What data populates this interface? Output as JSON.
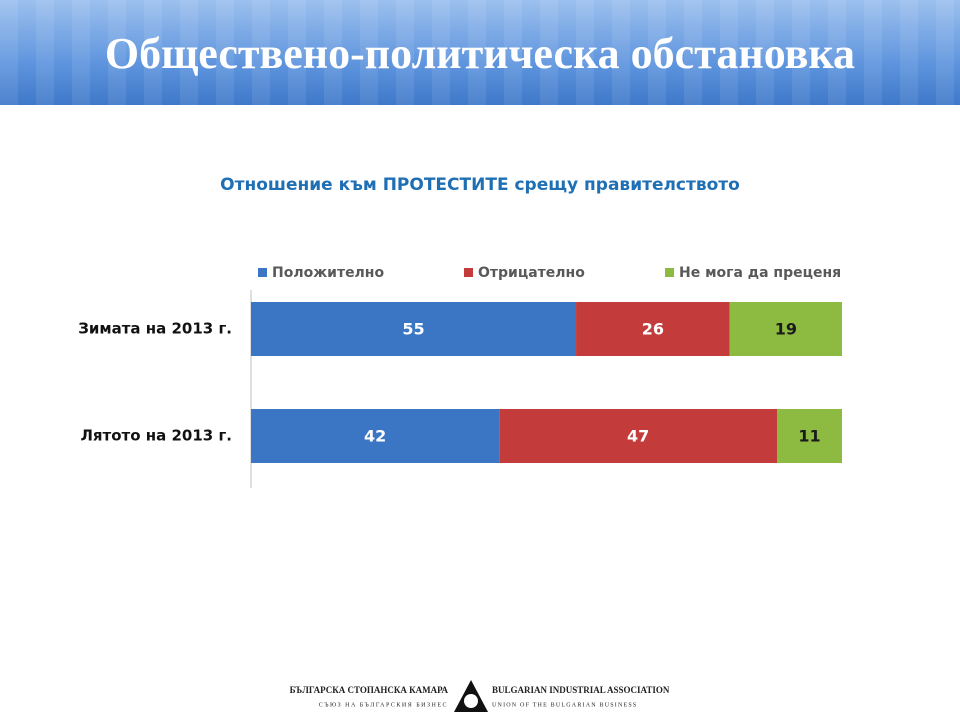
{
  "header": {
    "title": "Обществено-политическа обстановка"
  },
  "chart_data": {
    "type": "bar",
    "orientation": "horizontal",
    "stacked": true,
    "title": "Отношение към ПРОТЕСТИТЕ срещу правителството",
    "categories": [
      "Зимата на 2013 г.",
      "Лятото на 2013 г."
    ],
    "series": [
      {
        "name": "Положително",
        "color": "#3b76c4",
        "label_color": "#ffffff",
        "values": [
          55,
          42
        ]
      },
      {
        "name": "Отрицателно",
        "color": "#c33c3b",
        "label_color": "#ffffff",
        "values": [
          26,
          47
        ]
      },
      {
        "name": "Не мога да преценя",
        "color": "#8dbb42",
        "label_color": "#1a1a1a",
        "values": [
          19,
          11
        ]
      }
    ],
    "xlim": [
      0,
      100
    ],
    "legend": "top"
  },
  "footer": {
    "org_bg": "БЪЛГАРСКА СТОПАНСКА КАМАРА",
    "sub_bg": "СЪЮЗ НА БЪЛГАРСКИЯ БИЗНЕС",
    "org_en": "BULGARIAN INDUSTRIAL ASSOCIATION",
    "sub_en": "UNION OF THE BULGARIAN BUSINESS"
  }
}
